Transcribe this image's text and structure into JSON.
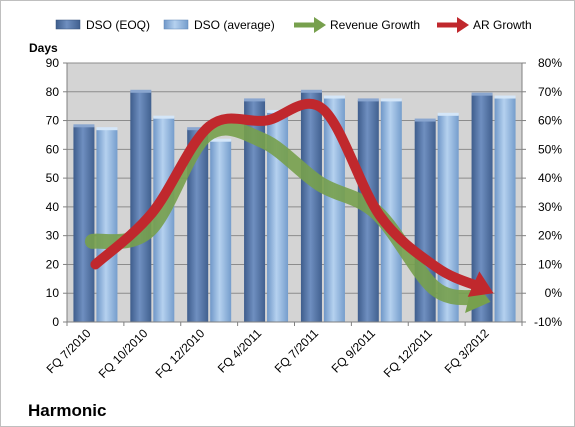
{
  "chart_data": {
    "type": "bar",
    "company": "Harmonic",
    "ylabel": "Days",
    "categories": [
      "FQ 7/2010",
      "FQ 10/2010",
      "FQ 12/2010",
      "FQ 4/2011",
      "FQ 7/2011",
      "FQ 9/2011",
      "FQ 12/2011",
      "FQ 3/2012"
    ],
    "ylim": [
      0,
      90
    ],
    "yticks": [
      0,
      10,
      20,
      30,
      40,
      50,
      60,
      70,
      80,
      90
    ],
    "y2lim": [
      -10,
      80
    ],
    "y2ticks": [
      "-10%",
      "0%",
      "10%",
      "20%",
      "30%",
      "40%",
      "50%",
      "60%",
      "70%",
      "80%"
    ],
    "grid": true,
    "legend_position": "top",
    "series": [
      {
        "name": "DSO (EOQ)",
        "kind": "bar",
        "axis": "left",
        "color": "#4f6fa0",
        "values": [
          68,
          80,
          67,
          77,
          80,
          77,
          70,
          79
        ]
      },
      {
        "name": "DSO (average)",
        "kind": "bar",
        "axis": "left",
        "color": "#8fb4dc",
        "values": [
          67,
          71,
          63,
          73,
          78,
          77,
          72,
          78
        ]
      },
      {
        "name": "Revenue Growth",
        "kind": "arrow",
        "axis": "right",
        "unit": "%",
        "color": "#77a04d",
        "values": [
          18,
          22,
          55,
          53,
          38,
          28,
          2,
          -3
        ]
      },
      {
        "name": "AR Growth",
        "kind": "arrow",
        "axis": "right",
        "unit": "%",
        "color": "#c0282d",
        "values": [
          10,
          28,
          58,
          60,
          64,
          27,
          9,
          0
        ]
      }
    ]
  }
}
